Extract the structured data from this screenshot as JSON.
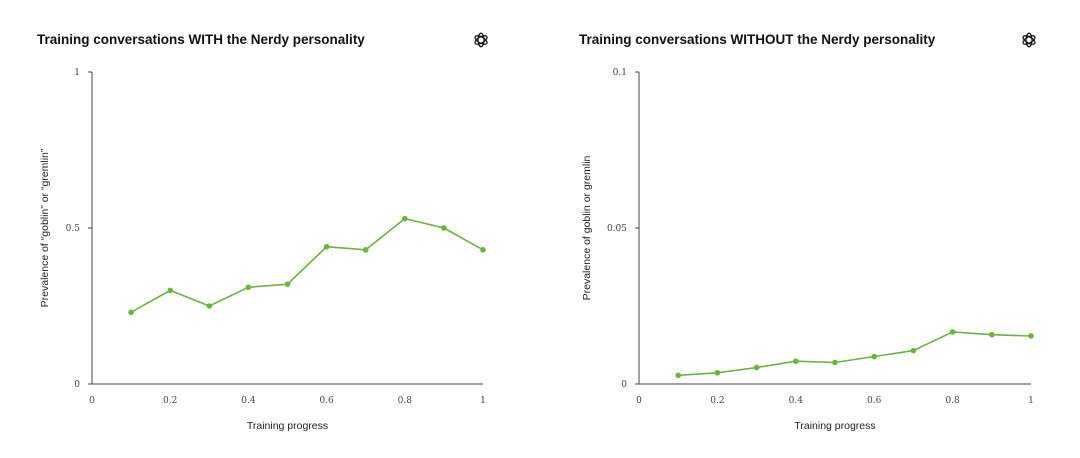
{
  "chart_data": [
    {
      "type": "line",
      "title": "Training conversations WITH the Nerdy personality",
      "xlabel": "Training progress",
      "ylabel": "Prevalence of “goblin” or “gremlin”",
      "xlim": [
        0,
        1
      ],
      "ylim": [
        0,
        1
      ],
      "x_ticks": [
        0,
        0.2,
        0.4,
        0.6,
        0.8,
        1
      ],
      "x_tick_labels": [
        "0",
        "0.2",
        "0.4",
        "0.6",
        "0.8",
        "1"
      ],
      "y_ticks": [
        0,
        0.5,
        1
      ],
      "y_tick_labels": [
        "0",
        "0.5",
        "1"
      ],
      "series": [
        {
          "name": "prevalence",
          "color": "#6db33f",
          "x": [
            0.1,
            0.2,
            0.3,
            0.4,
            0.5,
            0.6,
            0.7,
            0.8,
            0.9,
            1.0
          ],
          "y": [
            0.23,
            0.3,
            0.25,
            0.31,
            0.32,
            0.44,
            0.43,
            0.53,
            0.5,
            0.43
          ]
        }
      ]
    },
    {
      "type": "line",
      "title": "Training conversations WITHOUT the Nerdy personality",
      "xlabel": "Training progress",
      "ylabel": "Prevalence of goblin or gremlin",
      "xlim": [
        0,
        1
      ],
      "ylim": [
        0,
        0.1
      ],
      "x_ticks": [
        0,
        0.2,
        0.4,
        0.6,
        0.8,
        1
      ],
      "x_tick_labels": [
        "0",
        "0.2",
        "0.4",
        "0.6",
        "0.8",
        "1"
      ],
      "y_ticks": [
        0,
        0.05,
        0.1
      ],
      "y_tick_labels": [
        "0",
        "0.05",
        "0.1"
      ],
      "series": [
        {
          "name": "prevalence",
          "color": "#6db33f",
          "x": [
            0.1,
            0.2,
            0.3,
            0.4,
            0.5,
            0.6,
            0.7,
            0.8,
            0.9,
            1.0
          ],
          "y": [
            0.0028,
            0.0036,
            0.0053,
            0.0073,
            0.0069,
            0.0088,
            0.0107,
            0.0167,
            0.0158,
            0.0154
          ]
        }
      ]
    }
  ],
  "logo_icon": "openai-logo-icon"
}
